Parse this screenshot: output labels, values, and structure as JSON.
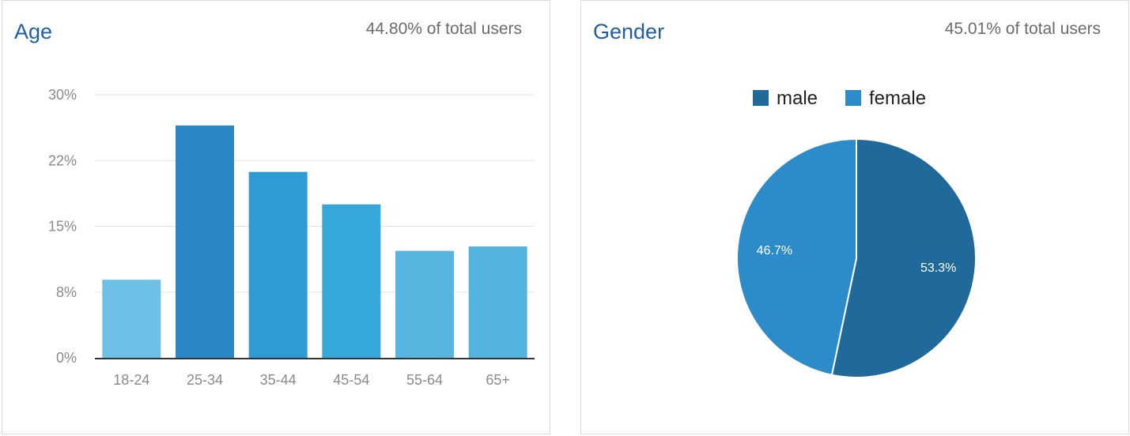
{
  "age_card": {
    "title": "Age",
    "subtitle": "44.80% of total users"
  },
  "gender_card": {
    "title": "Gender",
    "subtitle": "45.01% of total users"
  },
  "chart_data": [
    {
      "type": "bar",
      "title": "Age",
      "categories": [
        "18-24",
        "25-34",
        "35-44",
        "45-54",
        "55-64",
        "65+"
      ],
      "values": [
        8.9,
        26.5,
        21.2,
        17.5,
        12.2,
        12.7
      ],
      "bar_colors": [
        "#6fc0e6",
        "#2b88c6",
        "#2f9bd3",
        "#35a8d9",
        "#57b5df",
        "#53b4df"
      ],
      "y_ticks": [
        "0%",
        "8%",
        "15%",
        "22%",
        "30%"
      ],
      "ylim": [
        0,
        30
      ],
      "grid": true,
      "xlabel": "",
      "ylabel": ""
    },
    {
      "type": "pie",
      "title": "Gender",
      "legend": [
        "male",
        "female"
      ],
      "legend_position": "top",
      "slices": [
        {
          "label": "male",
          "value": 53.3,
          "display": "53.3%",
          "color": "#1f6a9b"
        },
        {
          "label": "female",
          "value": 46.7,
          "display": "46.7%",
          "color": "#2c8bc9"
        }
      ]
    }
  ]
}
